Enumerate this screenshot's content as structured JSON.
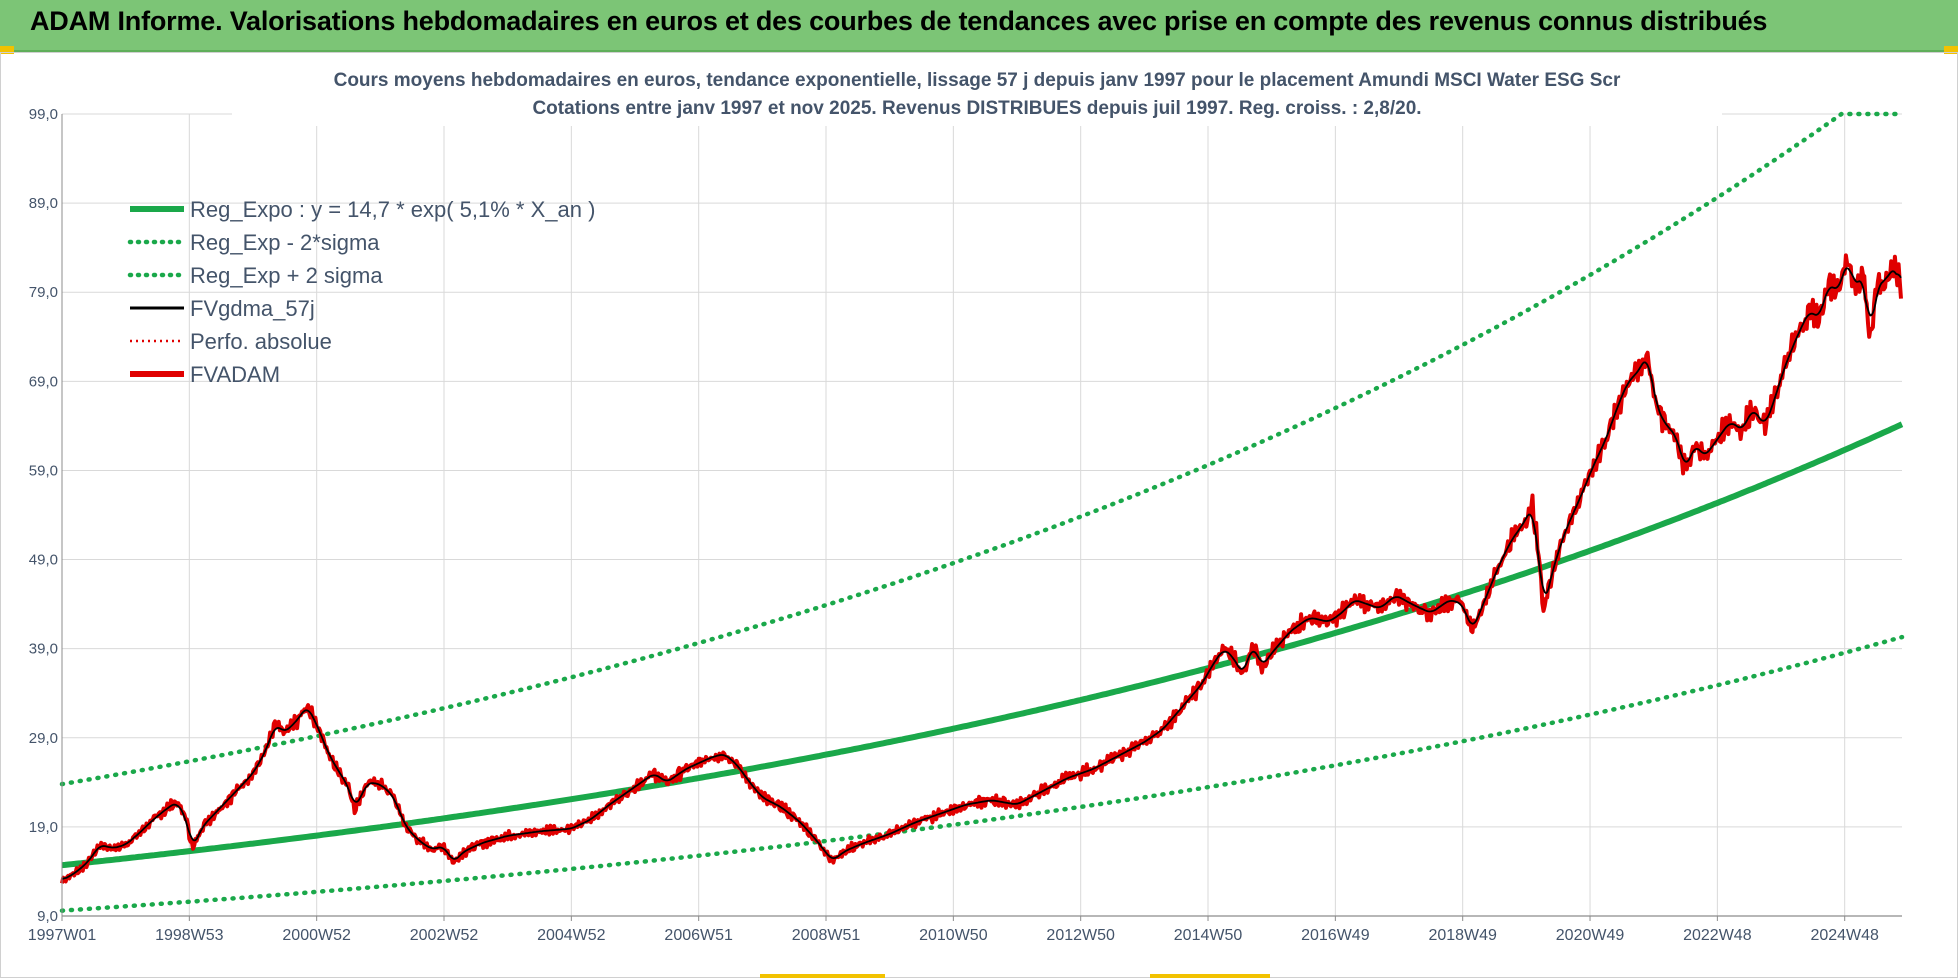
{
  "header": {
    "title": "ADAM Informe. Valorisations hebdomadaires en euros et des courbes de tendances avec prise en compte des revenus connus distribués"
  },
  "chart_data": {
    "type": "line",
    "title_line1": "Cours moyens hebdomadaires en euros, tendance exponentielle, lissage 57 j depuis janv 1997  pour le placement Amundi MSCI Water ESG Scr",
    "title_line2": "Cotations entre janv 1997 et nov 2025. Revenus DISTRIBUES depuis juil 1997. Reg.  croiss. : 2,8/20.",
    "xlabel": "",
    "ylabel": "",
    "ylim": [
      9.0,
      99.0
    ],
    "xlim": [
      1997.0,
      2025.9
    ],
    "yticks": [
      "99,0",
      "89,0",
      "79,0",
      "69,0",
      "59,0",
      "49,0",
      "39,0",
      "29,0",
      "19,0",
      "9,0"
    ],
    "yticks_values": [
      99,
      89,
      79,
      69,
      59,
      49,
      39,
      29,
      19,
      9
    ],
    "xticks": [
      "1997W01",
      "1998W53",
      "2000W52",
      "2002W52",
      "2004W52",
      "2006W51",
      "2008W51",
      "2010W50",
      "2012W50",
      "2014W50",
      "2016W49",
      "2018W49",
      "2020W49",
      "2022W48",
      "2024W48"
    ],
    "xticks_values": [
      1997.0,
      1999.0,
      2001.0,
      2003.0,
      2005.0,
      2007.0,
      2009.0,
      2011.0,
      2013.0,
      2015.0,
      2017.0,
      2019.0,
      2021.0,
      2023.0,
      2025.0
    ],
    "grid": true,
    "legend_position": "top-left",
    "legend": [
      {
        "key": "reg_expo",
        "label": "Reg_Expo : y = 14,7 * exp( 5,1% *  X_an )",
        "color": "#1aa84a",
        "style": "solid-thick"
      },
      {
        "key": "reg_minus",
        "label": "Reg_Exp - 2*sigma",
        "color": "#1aa84a",
        "style": "dotted"
      },
      {
        "key": "reg_plus",
        "label": "Reg_Exp + 2 sigma",
        "color": "#1aa84a",
        "style": "dotted"
      },
      {
        "key": "fvgdma",
        "label": "FVgdma_57j",
        "color": "#000000",
        "style": "solid"
      },
      {
        "key": "perfo",
        "label": "Perfo. absolue",
        "color": "#e00000",
        "style": "dotted-thin"
      },
      {
        "key": "fvadam",
        "label": "FVADAM",
        "color": "#e00000",
        "style": "solid-thick"
      }
    ],
    "regression": {
      "a": 14.7,
      "b": 0.051,
      "t0": 1997.0
    },
    "band_upper": {
      "start": 23.8,
      "end_cap": 99.0
    },
    "band_lower": {
      "start": 9.6,
      "end": 40.3
    },
    "fvadam_points": [
      [
        1997.0,
        13.0
      ],
      [
        1997.2,
        13.8
      ],
      [
        1997.4,
        15.0
      ],
      [
        1997.6,
        17.0
      ],
      [
        1997.8,
        16.6
      ],
      [
        1998.0,
        17.0
      ],
      [
        1998.2,
        18.2
      ],
      [
        1998.4,
        19.6
      ],
      [
        1998.6,
        20.8
      ],
      [
        1998.8,
        21.8
      ],
      [
        1998.95,
        20.0
      ],
      [
        1999.05,
        16.5
      ],
      [
        1999.2,
        19.0
      ],
      [
        1999.4,
        20.5
      ],
      [
        1999.6,
        22.0
      ],
      [
        1999.8,
        23.5
      ],
      [
        2000.0,
        25.0
      ],
      [
        2000.2,
        27.5
      ],
      [
        2000.35,
        30.5
      ],
      [
        2000.5,
        29.6
      ],
      [
        2000.7,
        31.0
      ],
      [
        2000.85,
        32.6
      ],
      [
        2001.0,
        30.5
      ],
      [
        2001.2,
        27.0
      ],
      [
        2001.35,
        25.2
      ],
      [
        2001.5,
        23.5
      ],
      [
        2001.6,
        21.0
      ],
      [
        2001.8,
        24.0
      ],
      [
        2002.0,
        23.8
      ],
      [
        2002.2,
        22.5
      ],
      [
        2002.4,
        19.0
      ],
      [
        2002.6,
        17.5
      ],
      [
        2002.8,
        16.5
      ],
      [
        2003.0,
        16.8
      ],
      [
        2003.15,
        15.0
      ],
      [
        2003.3,
        16.2
      ],
      [
        2003.6,
        17.2
      ],
      [
        2004.0,
        18.0
      ],
      [
        2004.5,
        18.5
      ],
      [
        2005.0,
        18.8
      ],
      [
        2005.3,
        19.8
      ],
      [
        2005.6,
        21.5
      ],
      [
        2006.0,
        23.5
      ],
      [
        2006.3,
        25.0
      ],
      [
        2006.5,
        24.0
      ],
      [
        2006.8,
        25.5
      ],
      [
        2007.2,
        26.8
      ],
      [
        2007.4,
        27.2
      ],
      [
        2007.6,
        26.0
      ],
      [
        2007.8,
        24.0
      ],
      [
        2008.0,
        22.3
      ],
      [
        2008.3,
        21.2
      ],
      [
        2008.6,
        19.5
      ],
      [
        2008.85,
        17.5
      ],
      [
        2009.1,
        15.2
      ],
      [
        2009.3,
        16.3
      ],
      [
        2009.6,
        17.2
      ],
      [
        2010.0,
        18.2
      ],
      [
        2010.4,
        19.5
      ],
      [
        2010.8,
        20.5
      ],
      [
        2011.2,
        21.5
      ],
      [
        2011.6,
        22.0
      ],
      [
        2012.0,
        21.5
      ],
      [
        2012.4,
        23.0
      ],
      [
        2012.8,
        24.5
      ],
      [
        2013.2,
        25.5
      ],
      [
        2013.6,
        27.0
      ],
      [
        2014.0,
        28.5
      ],
      [
        2014.3,
        30.0
      ],
      [
        2014.6,
        32.5
      ],
      [
        2014.9,
        35.0
      ],
      [
        2015.1,
        37.5
      ],
      [
        2015.25,
        39.0
      ],
      [
        2015.4,
        38.0
      ],
      [
        2015.55,
        36.0
      ],
      [
        2015.7,
        39.5
      ],
      [
        2015.85,
        37.0
      ],
      [
        2016.0,
        38.5
      ],
      [
        2016.3,
        41.0
      ],
      [
        2016.6,
        42.5
      ],
      [
        2016.9,
        42.0
      ],
      [
        2017.1,
        43.0
      ],
      [
        2017.3,
        44.5
      ],
      [
        2017.5,
        44.0
      ],
      [
        2017.7,
        43.5
      ],
      [
        2017.95,
        45.0
      ],
      [
        2018.2,
        44.0
      ],
      [
        2018.5,
        43.0
      ],
      [
        2018.8,
        44.5
      ],
      [
        2019.0,
        44.0
      ],
      [
        2019.15,
        41.0
      ],
      [
        2019.35,
        44.5
      ],
      [
        2019.55,
        48.0
      ],
      [
        2019.75,
        51.0
      ],
      [
        2019.95,
        53.0
      ],
      [
        2020.1,
        55.0
      ],
      [
        2020.2,
        49.0
      ],
      [
        2020.27,
        43.2
      ],
      [
        2020.4,
        47.5
      ],
      [
        2020.6,
        52.0
      ],
      [
        2020.85,
        56.0
      ],
      [
        2021.05,
        59.5
      ],
      [
        2021.25,
        62.5
      ],
      [
        2021.45,
        66.5
      ],
      [
        2021.6,
        69.0
      ],
      [
        2021.75,
        70.0
      ],
      [
        2021.9,
        72.0
      ],
      [
        2022.05,
        66.0
      ],
      [
        2022.2,
        64.0
      ],
      [
        2022.35,
        63.0
      ],
      [
        2022.5,
        59.0
      ],
      [
        2022.65,
        62.0
      ],
      [
        2022.8,
        60.5
      ],
      [
        2023.0,
        62.5
      ],
      [
        2023.2,
        64.5
      ],
      [
        2023.4,
        63.5
      ],
      [
        2023.55,
        66.0
      ],
      [
        2023.75,
        64.0
      ],
      [
        2023.9,
        67.0
      ],
      [
        2024.05,
        70.5
      ],
      [
        2024.25,
        74.0
      ],
      [
        2024.45,
        77.0
      ],
      [
        2024.6,
        76.0
      ],
      [
        2024.75,
        80.0
      ],
      [
        2024.9,
        79.0
      ],
      [
        2025.05,
        83.0
      ],
      [
        2025.15,
        79.5
      ],
      [
        2025.3,
        81.0
      ],
      [
        2025.4,
        73.5
      ],
      [
        2025.5,
        79.5
      ],
      [
        2025.65,
        80.5
      ],
      [
        2025.8,
        82.0
      ],
      [
        2025.9,
        79.0
      ]
    ]
  }
}
